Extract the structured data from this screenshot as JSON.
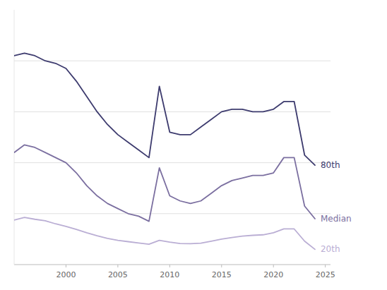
{
  "chart_data": {
    "type": "line",
    "x": [
      1995,
      1996,
      1997,
      1998,
      1999,
      2000,
      2001,
      2002,
      2003,
      2004,
      2005,
      2006,
      2007,
      2008,
      2009,
      2010,
      2011,
      2012,
      2013,
      2014,
      2015,
      2016,
      2017,
      2018,
      2019,
      2020,
      2021,
      2022,
      2023,
      2024
    ],
    "series": [
      {
        "name": "80th",
        "color": "#3d3b6e",
        "values": [
          0.82,
          0.83,
          0.82,
          0.8,
          0.79,
          0.77,
          0.72,
          0.66,
          0.6,
          0.55,
          0.51,
          0.48,
          0.45,
          0.42,
          0.7,
          0.52,
          0.51,
          0.51,
          0.54,
          0.57,
          0.6,
          0.61,
          0.61,
          0.6,
          0.6,
          0.61,
          0.64,
          0.64,
          0.43,
          0.39
        ]
      },
      {
        "name": "Median",
        "color": "#7b6fa0",
        "values": [
          0.44,
          0.47,
          0.46,
          0.44,
          0.42,
          0.4,
          0.36,
          0.31,
          0.27,
          0.24,
          0.22,
          0.2,
          0.19,
          0.17,
          0.38,
          0.27,
          0.25,
          0.24,
          0.25,
          0.28,
          0.31,
          0.33,
          0.34,
          0.35,
          0.35,
          0.36,
          0.42,
          0.42,
          0.23,
          0.18
        ]
      },
      {
        "name": "20th",
        "color": "#baaed4",
        "values": [
          0.175,
          0.185,
          0.178,
          0.172,
          0.16,
          0.15,
          0.138,
          0.125,
          0.113,
          0.103,
          0.095,
          0.09,
          0.085,
          0.08,
          0.095,
          0.088,
          0.083,
          0.082,
          0.084,
          0.092,
          0.1,
          0.106,
          0.112,
          0.115,
          0.117,
          0.125,
          0.14,
          0.14,
          0.092,
          0.06
        ]
      }
    ],
    "xlim": [
      1995,
      2025.5
    ],
    "xticks": [
      2000,
      2005,
      2010,
      2015,
      2020,
      2025
    ],
    "ylim": [
      0.0,
      1.0
    ],
    "yticks": [
      0.2,
      0.4,
      0.6,
      0.8
    ],
    "grid": true,
    "tick_labels": "x"
  }
}
